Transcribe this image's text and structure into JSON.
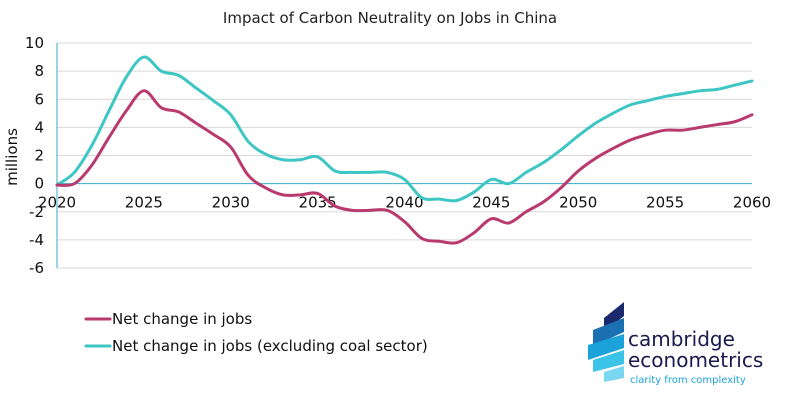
{
  "chart_data": {
    "type": "line",
    "title": "Impact of Carbon Neutrality on Jobs in China",
    "xlabel": "",
    "ylabel": "millions",
    "xlim": [
      2020,
      2060
    ],
    "ylim": [
      -6,
      10
    ],
    "xticks": [
      2020,
      2025,
      2030,
      2035,
      2040,
      2045,
      2050,
      2055,
      2060
    ],
    "yticks": [
      -6,
      -4,
      -2,
      0,
      2,
      4,
      6,
      8,
      10
    ],
    "grid": true,
    "legend_position": "bottom-left",
    "x": [
      2020,
      2021,
      2022,
      2023,
      2024,
      2025,
      2026,
      2027,
      2028,
      2029,
      2030,
      2031,
      2032,
      2033,
      2034,
      2035,
      2036,
      2037,
      2038,
      2039,
      2040,
      2041,
      2042,
      2043,
      2044,
      2045,
      2046,
      2047,
      2048,
      2049,
      2050,
      2051,
      2052,
      2053,
      2054,
      2055,
      2056,
      2057,
      2058,
      2059,
      2060
    ],
    "series": [
      {
        "name": "Net change in jobs",
        "color": "#b83a6e",
        "values": [
          -0.1,
          0.0,
          1.3,
          3.3,
          5.2,
          6.6,
          5.4,
          5.1,
          4.3,
          3.5,
          2.6,
          0.6,
          -0.3,
          -0.8,
          -0.8,
          -0.7,
          -1.6,
          -1.9,
          -1.9,
          -1.9,
          -2.7,
          -3.9,
          -4.1,
          -4.2,
          -3.5,
          -2.5,
          -2.8,
          -2.0,
          -1.3,
          -0.3,
          0.9,
          1.8,
          2.5,
          3.1,
          3.5,
          3.8,
          3.8,
          4.0,
          4.2,
          4.4,
          4.9
        ]
      },
      {
        "name": "Net change in jobs (excluding coal sector)",
        "color": "#3dc6c3",
        "values": [
          -0.1,
          0.8,
          2.7,
          5.2,
          7.6,
          9.0,
          8.0,
          7.7,
          6.8,
          5.9,
          4.9,
          3.0,
          2.1,
          1.7,
          1.7,
          1.9,
          0.9,
          0.8,
          0.8,
          0.8,
          0.3,
          -1.0,
          -1.1,
          -1.2,
          -0.6,
          0.3,
          0.0,
          0.8,
          1.5,
          2.4,
          3.4,
          4.3,
          5.0,
          5.6,
          5.9,
          6.2,
          6.4,
          6.6,
          6.7,
          7.0,
          7.3
        ]
      }
    ]
  },
  "branding": {
    "line1": "cambridge",
    "line2": "econometrics",
    "tagline": "clarity from complexity",
    "logo_color_dark": "#1a2a6c",
    "logo_color_light": "#1ba3d9"
  }
}
